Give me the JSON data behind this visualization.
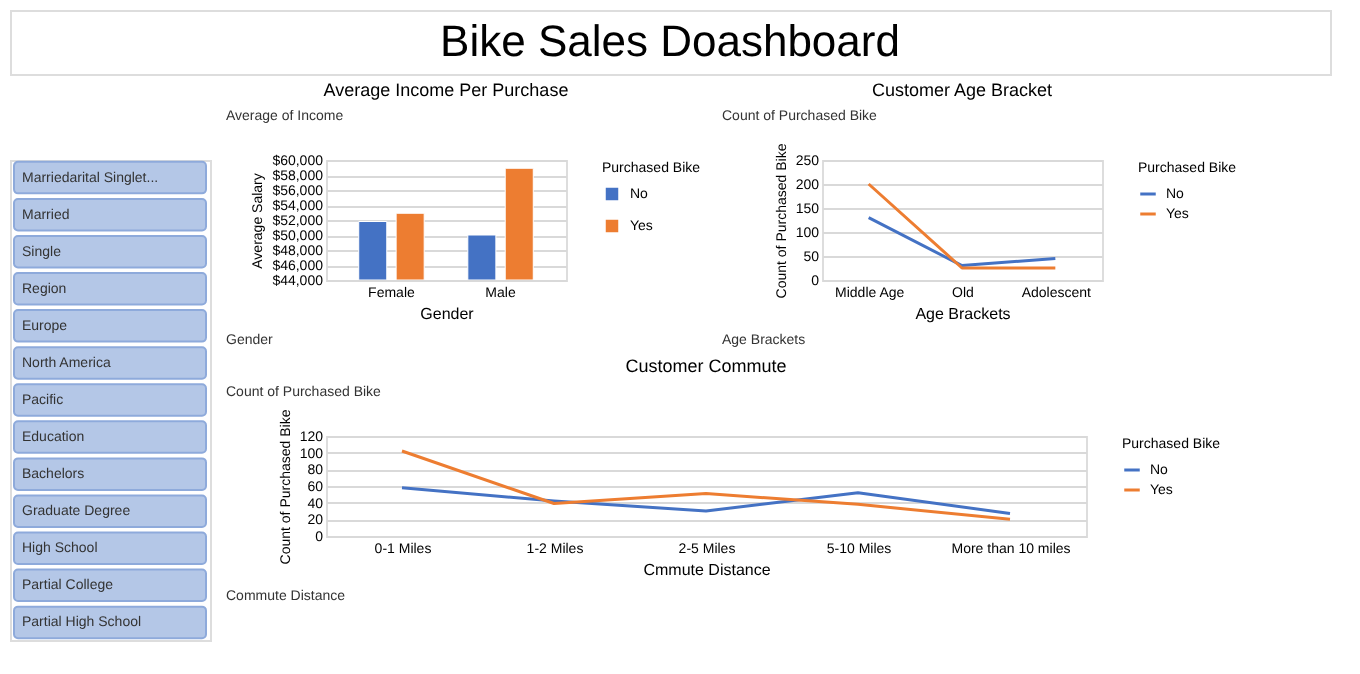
{
  "chart_data": [
    {
      "type": "other",
      "title": "Bike Sales Doashboard"
    },
    {
      "type": "other",
      "annotations": [
        "Marriedarital Singlet...",
        "Married",
        "Single",
        "Region",
        "Europe",
        "North America",
        "Pacific",
        "Education",
        "Bachelors",
        "Graduate Degree",
        "High School",
        "Partial College",
        "Partial High School"
      ]
    },
    {
      "type": "bar",
      "title": "Average Income Per Purchase",
      "xlabel": "Gender",
      "ylabel": "Average Salary",
      "legend_title": "Purchased Bike",
      "annotations": [
        "Average of Income",
        "Gender"
      ],
      "categories": [
        "Female",
        "Male"
      ],
      "series": [
        {
          "name": "No",
          "color": "#4472c4",
          "values": [
            51800,
            50000
          ]
        },
        {
          "name": "Yes",
          "color": "#ed7d31",
          "values": [
            52900,
            58900
          ]
        }
      ],
      "ylim": [
        44000,
        60000
      ],
      "yticks": [
        {
          "value": 44000,
          "label": "$44,000"
        },
        {
          "value": 46000,
          "label": "$46,000"
        },
        {
          "value": 48000,
          "label": "$48,000"
        },
        {
          "value": 50000,
          "label": "$50,000"
        },
        {
          "value": 52000,
          "label": "$52,000"
        },
        {
          "value": 54000,
          "label": "$54,000"
        },
        {
          "value": 56000,
          "label": "$56,000"
        },
        {
          "value": 58000,
          "label": "$58,000"
        },
        {
          "value": 60000,
          "label": "$60,000"
        }
      ],
      "grid": "y",
      "legend": "right"
    },
    {
      "type": "line",
      "title": "Customer Age Bracket",
      "xlabel": "Age Brackets",
      "ylabel": "Count of Purchased Bike",
      "legend_title": "Purchased Bike",
      "annotations": [
        "Count of Purchased Bike",
        "Age Brackets"
      ],
      "categories": [
        "Middle Age",
        "Old",
        "Adolescent"
      ],
      "series": [
        {
          "name": "No",
          "color": "#4472c4",
          "values": [
            130,
            30,
            45
          ]
        },
        {
          "name": "Yes",
          "color": "#ed7d31",
          "values": [
            200,
            25,
            25
          ]
        }
      ],
      "ylim": [
        0,
        250
      ],
      "yticks": [
        0,
        50,
        100,
        150,
        200,
        250
      ],
      "grid": "y",
      "legend": "right",
      "marker": "none",
      "line_style": "solid"
    },
    {
      "type": "line",
      "title": "Customer Commute",
      "xlabel": "Cmmute Distance",
      "ylabel": "Count of Purchased Bike",
      "legend_title": "Purchased Bike",
      "annotations": [
        "Count of Purchased Bike",
        "Commute Distance"
      ],
      "categories": [
        "0-1 Miles",
        "1-2 Miles",
        "2-5 Miles",
        "5-10 Miles",
        "More than 10 miles"
      ],
      "series": [
        {
          "name": "No",
          "color": "#4472c4",
          "values": [
            58,
            42,
            30,
            52,
            27
          ]
        },
        {
          "name": "Yes",
          "color": "#ed7d31",
          "values": [
            102,
            39,
            51,
            38,
            20
          ]
        }
      ],
      "ylim": [
        0,
        120
      ],
      "yticks": [
        0,
        20,
        40,
        60,
        80,
        100,
        120
      ],
      "grid": "y",
      "legend": "right",
      "marker": "none",
      "line_style": "solid"
    }
  ]
}
